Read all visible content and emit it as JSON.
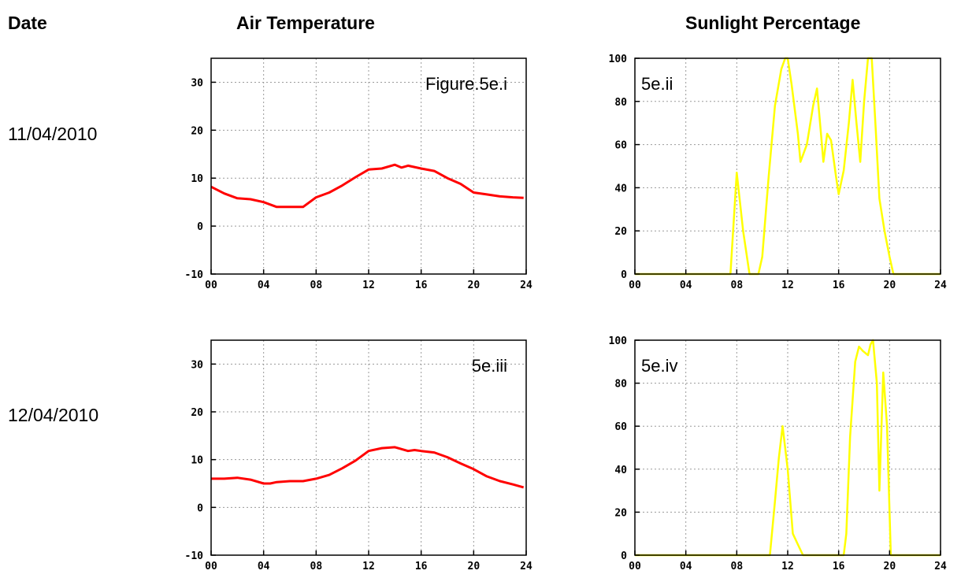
{
  "headers": {
    "date": "Date",
    "air": "Air Temperature",
    "sun": "Sunlight Percentage"
  },
  "dates": [
    "11/04/2010",
    "12/04/2010"
  ],
  "chart_data": [
    {
      "type": "line",
      "title": "Figure.5e.i",
      "color": "#ff0000",
      "xlim": [
        0,
        24
      ],
      "ylim": [
        -10,
        35
      ],
      "grid": true,
      "xticks": [
        "00",
        "04",
        "08",
        "12",
        "16",
        "20",
        "24"
      ],
      "yticks": [
        -10,
        0,
        10,
        20,
        30
      ],
      "series": [
        {
          "x": [
            0,
            1,
            2,
            3,
            4,
            5,
            6,
            7,
            8,
            9,
            10,
            11,
            12,
            13,
            14,
            14.5,
            15,
            16,
            17,
            18,
            19,
            20,
            21,
            22,
            23,
            23.8
          ],
          "y": [
            8.2,
            6.8,
            5.8,
            5.6,
            5.0,
            4.0,
            4.0,
            4.0,
            6.0,
            7.0,
            8.5,
            10.2,
            11.8,
            12.0,
            12.8,
            12.2,
            12.6,
            12.0,
            11.5,
            10.0,
            8.8,
            7.0,
            6.6,
            6.2,
            6.0,
            5.9
          ]
        }
      ]
    },
    {
      "type": "line",
      "title": "5e.ii",
      "color": "#ffff00",
      "xlim": [
        0,
        24
      ],
      "ylim": [
        0,
        100
      ],
      "grid": true,
      "xticks": [
        "00",
        "04",
        "08",
        "12",
        "16",
        "20",
        "24"
      ],
      "yticks": [
        0,
        20,
        40,
        60,
        80,
        100
      ],
      "series": [
        {
          "x": [
            0,
            7.5,
            8,
            8.5,
            9,
            9.7,
            10,
            10.5,
            11,
            11.5,
            11.8,
            12,
            12.3,
            12.8,
            13,
            13.5,
            14,
            14.3,
            14.6,
            14.8,
            15.1,
            15.4,
            15.8,
            16,
            16.4,
            16.8,
            17.1,
            17.4,
            17.7,
            18,
            18.3,
            18.6,
            18.9,
            19.2,
            19.6,
            20,
            20.3,
            24
          ],
          "y": [
            0,
            0,
            47,
            20,
            0,
            0,
            8,
            45,
            78,
            95,
            100,
            100,
            88,
            65,
            52,
            60,
            78,
            86,
            66,
            52,
            65,
            62,
            45,
            37,
            48,
            70,
            90,
            70,
            52,
            80,
            100,
            100,
            68,
            35,
            20,
            8,
            0,
            0
          ]
        }
      ]
    },
    {
      "type": "line",
      "title": "5e.iii",
      "color": "#ff0000",
      "xlim": [
        0,
        24
      ],
      "ylim": [
        -10,
        35
      ],
      "grid": true,
      "xticks": [
        "00",
        "04",
        "08",
        "12",
        "16",
        "20",
        "24"
      ],
      "yticks": [
        -10,
        0,
        10,
        20,
        30
      ],
      "series": [
        {
          "x": [
            0,
            1,
            2,
            3,
            4,
            4.5,
            5,
            6,
            7,
            8,
            9,
            10,
            11,
            12,
            13,
            14,
            15,
            15.5,
            16,
            17,
            18,
            19,
            20,
            21,
            22,
            23,
            23.8
          ],
          "y": [
            6.0,
            6.0,
            6.2,
            5.8,
            5.0,
            5.0,
            5.3,
            5.5,
            5.5,
            6.0,
            6.8,
            8.2,
            9.8,
            11.8,
            12.4,
            12.6,
            11.8,
            12.0,
            11.8,
            11.5,
            10.5,
            9.2,
            8.0,
            6.5,
            5.5,
            4.8,
            4.2
          ]
        }
      ]
    },
    {
      "type": "line",
      "title": "5e.iv",
      "color": "#ffff00",
      "xlim": [
        0,
        24
      ],
      "ylim": [
        0,
        100
      ],
      "grid": true,
      "xticks": [
        "00",
        "04",
        "08",
        "12",
        "16",
        "20",
        "24"
      ],
      "yticks": [
        0,
        20,
        40,
        60,
        80,
        100
      ],
      "series": [
        {
          "x": [
            0,
            10.6,
            11,
            11.3,
            11.6,
            12,
            12.4,
            12.8,
            13.2,
            16.4,
            16.6,
            16.9,
            17.3,
            17.6,
            17.9,
            18.3,
            18.5,
            18.7,
            19,
            19.2,
            19.5,
            19.8,
            20.1,
            24
          ],
          "y": [
            0,
            0,
            25,
            45,
            60,
            40,
            10,
            5,
            0,
            0,
            10,
            55,
            90,
            97,
            95,
            93,
            98,
            100,
            80,
            30,
            85,
            60,
            0,
            0
          ]
        }
      ]
    }
  ]
}
